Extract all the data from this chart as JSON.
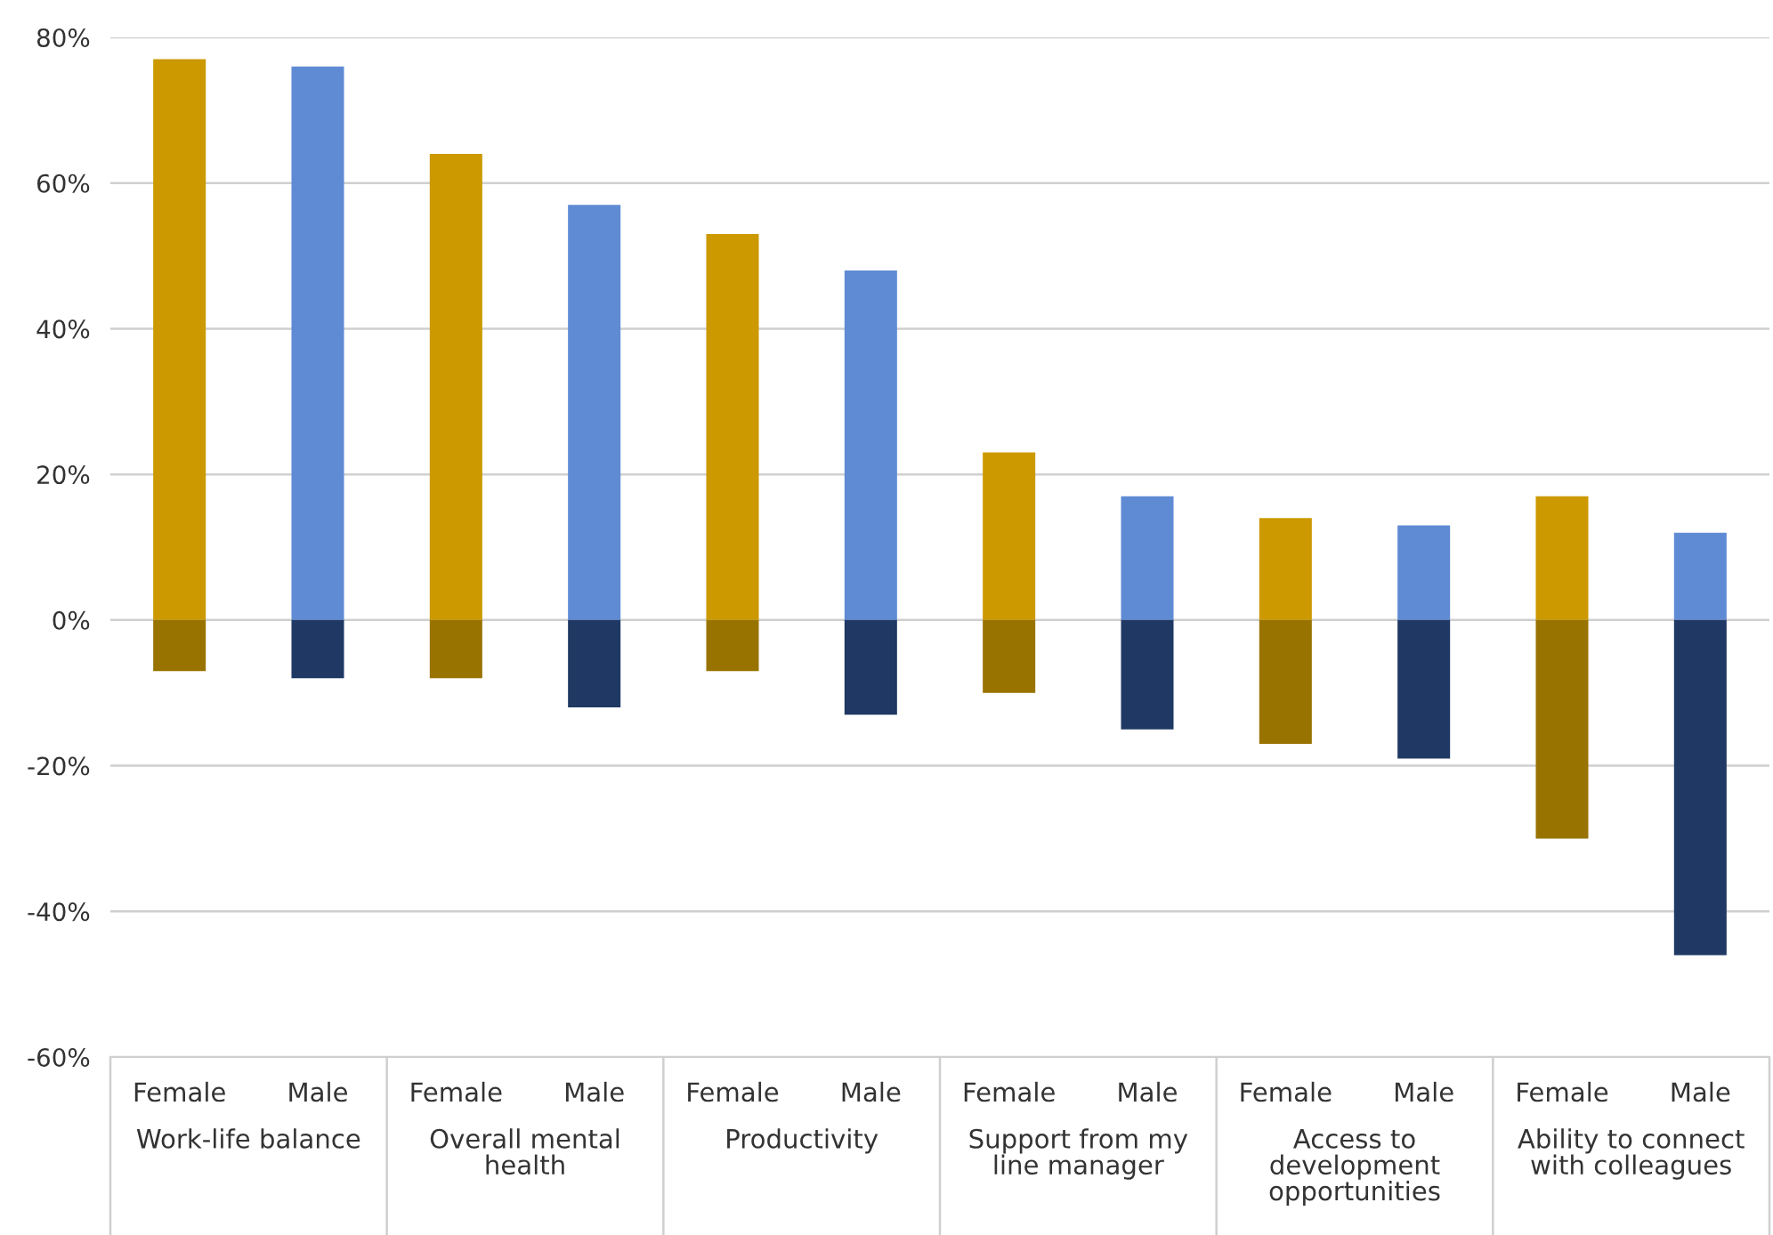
{
  "chart_data": {
    "type": "bar",
    "stacked": true,
    "categories": [
      "Female",
      "Male",
      "Female",
      "Male",
      "Female",
      "Male",
      "Female",
      "Male",
      "Female",
      "Male",
      "Female",
      "Male"
    ],
    "series": [
      {
        "colors": [
          "#cc9900",
          "#5f8bd4",
          "#cc9900",
          "#5f8bd4",
          "#cc9900",
          "#5f8bd4",
          "#cc9900",
          "#5f8bd4",
          "#cc9900",
          "#5f8bd4",
          "#cc9900",
          "#5f8bd4"
        ],
        "values": [
          77,
          76,
          64,
          57,
          53,
          48,
          23,
          17,
          14,
          13,
          17,
          12
        ]
      },
      {
        "colors": [
          "#997300",
          "#1f3864",
          "#997300",
          "#1f3864",
          "#997300",
          "#1f3864",
          "#997300",
          "#1f3864",
          "#997300",
          "#1f3864",
          "#997300",
          "#1f3864"
        ],
        "values": [
          -7,
          -8,
          -8,
          -12,
          -7,
          -13,
          -10,
          -15,
          -17,
          -19,
          -30,
          -46
        ]
      }
    ],
    "annotations": [
      "Work-life balance",
      "Overall mental health",
      "Productivity",
      "Support from my line manager",
      "Access to development opportunities",
      "Ability to connect with colleagues"
    ],
    "ylim": [
      -60,
      80
    ],
    "yticks": [
      {
        "value": -60,
        "label": "-60%"
      },
      {
        "value": -40,
        "label": "-40%"
      },
      {
        "value": -20,
        "label": "-20%"
      },
      {
        "value": 0,
        "label": "0%"
      },
      {
        "value": 20,
        "label": "20%"
      },
      {
        "value": 40,
        "label": "40%"
      },
      {
        "value": 60,
        "label": "60%"
      },
      {
        "value": 80,
        "label": "80%"
      }
    ],
    "grid": "y",
    "legend": false
  }
}
